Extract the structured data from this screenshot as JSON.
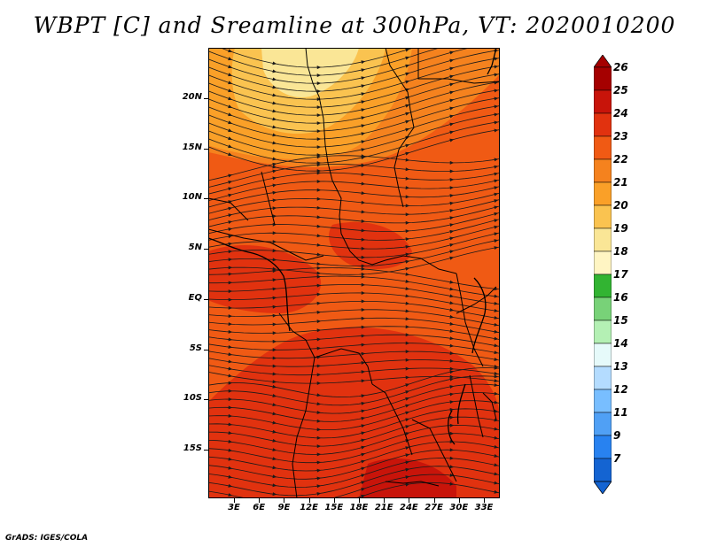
{
  "title": "WBPT [C] and Sreamline at 300hPa, VT: 2020010200",
  "credit": "GrADS: IGES/COLA",
  "lat_labels": [
    "20N",
    "15N",
    "10N",
    "5N",
    "EQ",
    "5S",
    "10S",
    "15S"
  ],
  "lon_labels": [
    "3E",
    "6E",
    "9E",
    "12E",
    "15E",
    "18E",
    "21E",
    "24E",
    "27E",
    "30E",
    "33E"
  ],
  "colorbar": {
    "labels": [
      "26",
      "25",
      "24",
      "23",
      "22",
      "21",
      "20",
      "19",
      "18",
      "17",
      "16",
      "15",
      "14",
      "13",
      "12",
      "11",
      "9",
      "7"
    ],
    "colors": [
      "#a50000",
      "#c8140a",
      "#e1320f",
      "#f05a14",
      "#f5821e",
      "#faa028",
      "#fac350",
      "#fae696",
      "#fff5c3",
      "#32b432",
      "#78d278",
      "#b4f0b4",
      "#e6fafa",
      "#b4dcff",
      "#78beff",
      "#50a0f5",
      "#2882f0",
      "#1464d2"
    ]
  }
}
